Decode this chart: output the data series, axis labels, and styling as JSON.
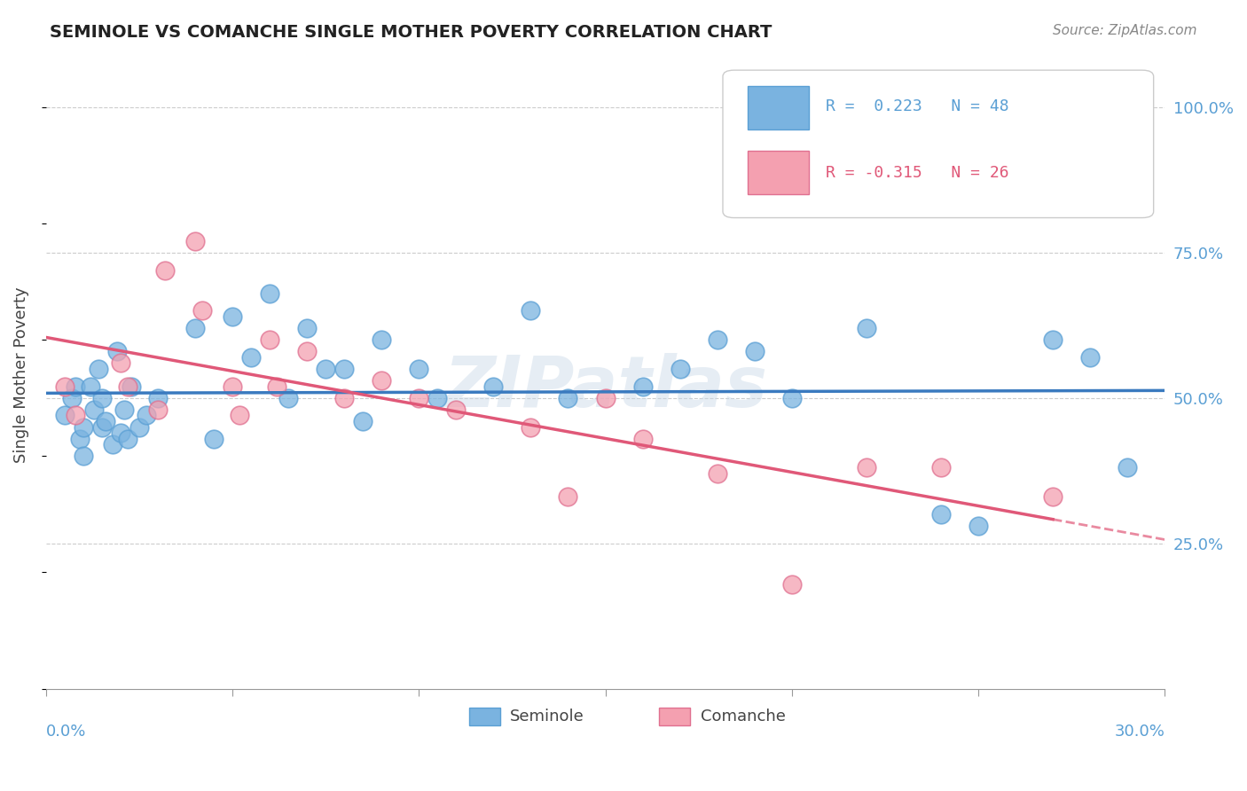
{
  "title": "SEMINOLE VS COMANCHE SINGLE MOTHER POVERTY CORRELATION CHART",
  "source": "Source: ZipAtlas.com",
  "ylabel": "Single Mother Poverty",
  "y_tick_labels": [
    "25.0%",
    "50.0%",
    "75.0%",
    "100.0%"
  ],
  "y_tick_values": [
    0.25,
    0.5,
    0.75,
    1.0
  ],
  "x_min": 0.0,
  "x_max": 0.3,
  "y_min": 0.0,
  "y_max": 1.08,
  "seminole_color": "#7ab3e0",
  "seminole_edge": "#5a9fd4",
  "comanche_color": "#f4a0b0",
  "comanche_edge": "#e07090",
  "seminole_R": 0.223,
  "seminole_N": 48,
  "comanche_R": -0.315,
  "comanche_N": 26,
  "line_color_blue": "#3a7abf",
  "line_color_pink": "#e05878",
  "watermark": "ZIPatlas",
  "seminole_x": [
    0.005,
    0.007,
    0.008,
    0.009,
    0.01,
    0.01,
    0.012,
    0.013,
    0.014,
    0.015,
    0.015,
    0.016,
    0.018,
    0.019,
    0.02,
    0.021,
    0.022,
    0.023,
    0.025,
    0.027,
    0.03,
    0.04,
    0.045,
    0.05,
    0.055,
    0.06,
    0.065,
    0.07,
    0.075,
    0.08,
    0.085,
    0.09,
    0.1,
    0.105,
    0.12,
    0.13,
    0.14,
    0.16,
    0.17,
    0.18,
    0.19,
    0.2,
    0.22,
    0.24,
    0.25,
    0.27,
    0.28,
    0.29
  ],
  "seminole_y": [
    0.47,
    0.5,
    0.52,
    0.43,
    0.45,
    0.4,
    0.52,
    0.48,
    0.55,
    0.45,
    0.5,
    0.46,
    0.42,
    0.58,
    0.44,
    0.48,
    0.43,
    0.52,
    0.45,
    0.47,
    0.5,
    0.62,
    0.43,
    0.64,
    0.57,
    0.68,
    0.5,
    0.62,
    0.55,
    0.55,
    0.46,
    0.6,
    0.55,
    0.5,
    0.52,
    0.65,
    0.5,
    0.52,
    0.55,
    0.6,
    0.58,
    0.5,
    0.62,
    0.3,
    0.28,
    0.6,
    0.57,
    0.38
  ],
  "comanche_x": [
    0.005,
    0.008,
    0.02,
    0.022,
    0.03,
    0.032,
    0.04,
    0.042,
    0.05,
    0.052,
    0.06,
    0.062,
    0.07,
    0.08,
    0.09,
    0.1,
    0.11,
    0.13,
    0.14,
    0.15,
    0.16,
    0.18,
    0.2,
    0.22,
    0.24,
    0.27
  ],
  "comanche_y": [
    0.52,
    0.47,
    0.56,
    0.52,
    0.48,
    0.72,
    0.77,
    0.65,
    0.52,
    0.47,
    0.6,
    0.52,
    0.58,
    0.5,
    0.53,
    0.5,
    0.48,
    0.45,
    0.33,
    0.5,
    0.43,
    0.37,
    0.18,
    0.38,
    0.38,
    0.33
  ]
}
